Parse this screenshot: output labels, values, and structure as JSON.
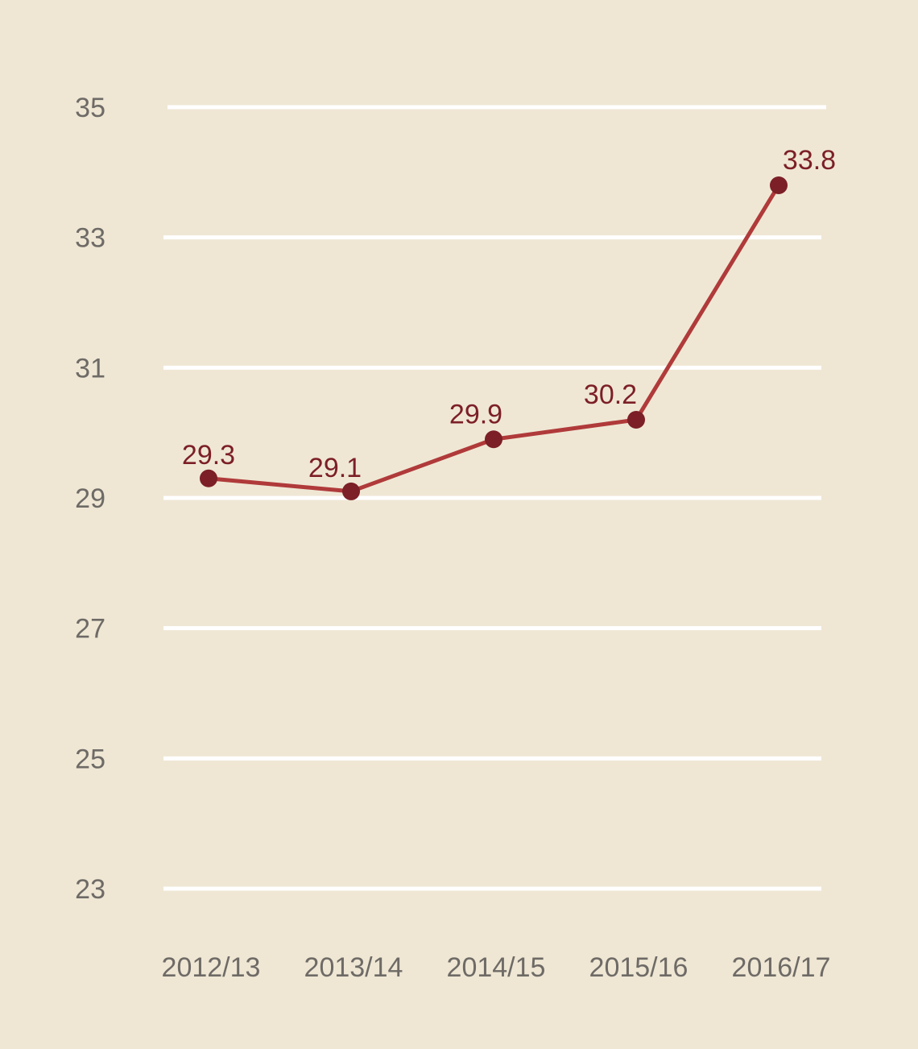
{
  "chart_data": {
    "type": "line",
    "title": "",
    "xlabel": "",
    "ylabel": "",
    "categories": [
      "2012/13",
      "2013/14",
      "2014/15",
      "2015/16",
      "2016/17"
    ],
    "series": [
      {
        "values": [
          29.3,
          29.1,
          29.9,
          30.2,
          33.8
        ]
      }
    ],
    "data_labels": [
      "29.3",
      "29.1",
      "29.9",
      "30.2",
      "33.8"
    ],
    "y_ticks": [
      23,
      25,
      27,
      29,
      31,
      33,
      35
    ],
    "y_tick_labels": [
      "23",
      "25",
      "27",
      "29",
      "31",
      "33",
      "35"
    ],
    "ylim": [
      23,
      35
    ],
    "grid": true,
    "legend": "none",
    "colors": {
      "background": "#efe7d4",
      "gridline": "#ffffff",
      "line": "#b03a3a",
      "marker": "#7c1f26",
      "data_label": "#7c1f26",
      "axis_label": "#6e6a66"
    }
  }
}
